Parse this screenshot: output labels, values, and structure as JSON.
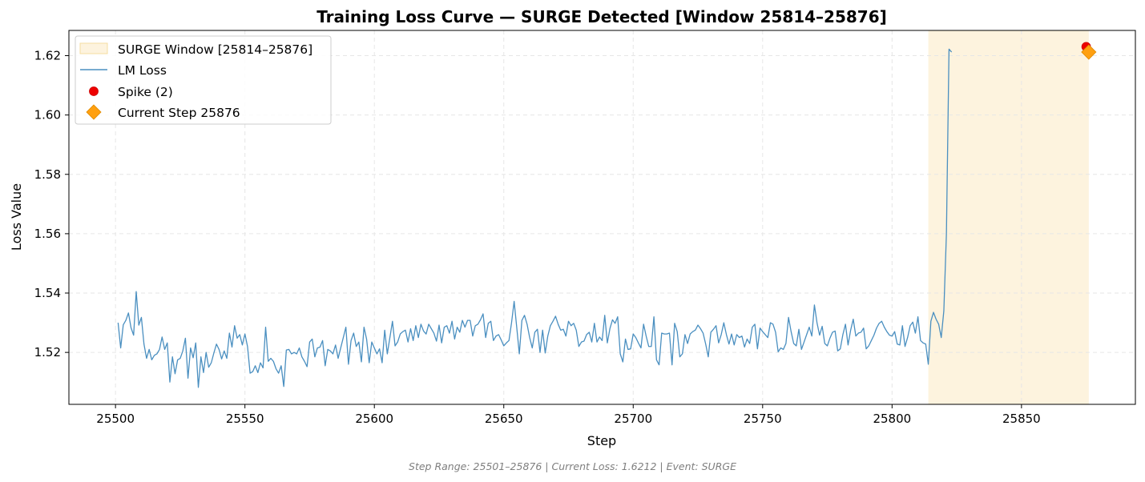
{
  "chart_data": {
    "type": "line",
    "title": "Training Loss Curve — SURGE Detected [Window 25814–25876]",
    "xlabel": "Step",
    "ylabel": "Loss Value",
    "xlim": [
      25482,
      25894
    ],
    "ylim": [
      1.5025,
      1.6285
    ],
    "xticks": [
      25500,
      25550,
      25600,
      25650,
      25700,
      25750,
      25800,
      25850
    ],
    "yticks": [
      1.52,
      1.54,
      1.56,
      1.58,
      1.6,
      1.62
    ],
    "ytick_labels": [
      "1.52",
      "1.54",
      "1.56",
      "1.58",
      "1.60",
      "1.62"
    ],
    "grid": true,
    "legend_position": "top-left",
    "surge_window": {
      "label": "SURGE Window [25814–25876]",
      "start": 25814,
      "end": 25876,
      "color": "#fdf3de"
    },
    "series": [
      {
        "name": "LM Loss",
        "color": "#4a8fc0",
        "x_start": 25501,
        "x_step": 1,
        "values": [
          1.53,
          1.5215,
          1.5293,
          1.5308,
          1.5333,
          1.5283,
          1.5258,
          1.5405,
          1.5292,
          1.5318,
          1.5228,
          1.518,
          1.521,
          1.5175,
          1.519,
          1.5195,
          1.521,
          1.5252,
          1.521,
          1.5232,
          1.51,
          1.5185,
          1.5128,
          1.5175,
          1.518,
          1.5205,
          1.5248,
          1.5113,
          1.5215,
          1.5182,
          1.5232,
          1.5082,
          1.5185,
          1.5132,
          1.52,
          1.515,
          1.5165,
          1.5198,
          1.5228,
          1.521,
          1.5178,
          1.5205,
          1.518,
          1.5265,
          1.5218,
          1.529,
          1.5248,
          1.526,
          1.5225,
          1.5262,
          1.522,
          1.513,
          1.5135,
          1.5155,
          1.5132,
          1.5165,
          1.5148,
          1.5285,
          1.517,
          1.518,
          1.517,
          1.5145,
          1.513,
          1.5155,
          1.5085,
          1.5208,
          1.521,
          1.5195,
          1.52,
          1.5195,
          1.5215,
          1.5185,
          1.517,
          1.5152,
          1.5235,
          1.5245,
          1.5185,
          1.5215,
          1.5218,
          1.524,
          1.5155,
          1.521,
          1.5205,
          1.5195,
          1.5225,
          1.518,
          1.5215,
          1.525,
          1.5285,
          1.516,
          1.524,
          1.5265,
          1.522,
          1.5235,
          1.5168,
          1.5285,
          1.5245,
          1.5165,
          1.5235,
          1.5215,
          1.5195,
          1.5212,
          1.5165,
          1.5275,
          1.5195,
          1.525,
          1.5305,
          1.5222,
          1.5235,
          1.5262,
          1.527,
          1.5275,
          1.5235,
          1.528,
          1.524,
          1.529,
          1.525,
          1.5295,
          1.5272,
          1.5262,
          1.5295,
          1.528,
          1.5265,
          1.5238,
          1.5292,
          1.5232,
          1.5285,
          1.529,
          1.5265,
          1.5305,
          1.5245,
          1.5285,
          1.5268,
          1.5308,
          1.5285,
          1.5308,
          1.5308,
          1.5255,
          1.529,
          1.5295,
          1.531,
          1.533,
          1.525,
          1.5298,
          1.5305,
          1.524,
          1.5255,
          1.526,
          1.5242,
          1.5222,
          1.5232,
          1.524,
          1.53,
          1.5372,
          1.5285,
          1.5195,
          1.5308,
          1.5325,
          1.5295,
          1.525,
          1.5215,
          1.5268,
          1.5278,
          1.52,
          1.5275,
          1.5198,
          1.5255,
          1.529,
          1.5305,
          1.5322,
          1.5295,
          1.5275,
          1.5278,
          1.5255,
          1.5305,
          1.529,
          1.5298,
          1.5275,
          1.522,
          1.5235,
          1.5238,
          1.526,
          1.5268,
          1.5235,
          1.5298,
          1.5235,
          1.5252,
          1.524,
          1.5325,
          1.5232,
          1.528,
          1.531,
          1.5298,
          1.532,
          1.5195,
          1.5168,
          1.5245,
          1.521,
          1.5212,
          1.5262,
          1.525,
          1.5232,
          1.5215,
          1.5295,
          1.5255,
          1.522,
          1.522,
          1.532,
          1.5175,
          1.5158,
          1.5265,
          1.5262,
          1.5262,
          1.5265,
          1.5158,
          1.5298,
          1.527,
          1.5185,
          1.5195,
          1.526,
          1.523,
          1.5262,
          1.527,
          1.5275,
          1.5292,
          1.528,
          1.5265,
          1.5228,
          1.5185,
          1.5268,
          1.5278,
          1.529,
          1.5232,
          1.526,
          1.53,
          1.526,
          1.5228,
          1.5262,
          1.5225,
          1.526,
          1.525,
          1.5255,
          1.5218,
          1.5245,
          1.523,
          1.5285,
          1.5295,
          1.5212,
          1.5282,
          1.527,
          1.526,
          1.525,
          1.53,
          1.5295,
          1.5268,
          1.5202,
          1.5215,
          1.521,
          1.523,
          1.5318,
          1.527,
          1.523,
          1.5222,
          1.5278,
          1.521,
          1.5235,
          1.526,
          1.5285,
          1.5255,
          1.536,
          1.53,
          1.5258,
          1.5288,
          1.523,
          1.5222,
          1.5248,
          1.5268,
          1.5272,
          1.5205,
          1.5212,
          1.526,
          1.5295,
          1.5225,
          1.5275,
          1.5312,
          1.5255,
          1.5265,
          1.5268,
          1.5282,
          1.5212,
          1.5222,
          1.524,
          1.5258,
          1.5282,
          1.5298,
          1.5305,
          1.5285,
          1.527,
          1.5258,
          1.5255,
          1.527,
          1.5228,
          1.5225,
          1.529,
          1.522,
          1.525,
          1.529,
          1.5302,
          1.5265,
          1.532,
          1.524,
          1.5232,
          1.5228,
          1.516,
          1.5305,
          1.5335,
          1.5312,
          1.5295,
          1.525,
          1.534,
          1.56,
          1.6222,
          1.6212
        ]
      }
    ],
    "spike_points": {
      "label": "Spike (2)",
      "color": "#ee0000",
      "x": [
        25875,
        25876
      ],
      "y": [
        1.623,
        1.6215
      ]
    },
    "current_point": {
      "label": "Current Step 25876",
      "color": "#ffa010",
      "x": 25876,
      "y": 1.6212
    }
  },
  "footer_text": "Step Range: 25501–25876 | Current Loss: 1.6212 | Event: SURGE",
  "colors": {
    "grid": "#e6e6e6",
    "footer": "#7f7f7f",
    "spike_edge": "#cc0000",
    "current_edge": "#e08a00"
  }
}
